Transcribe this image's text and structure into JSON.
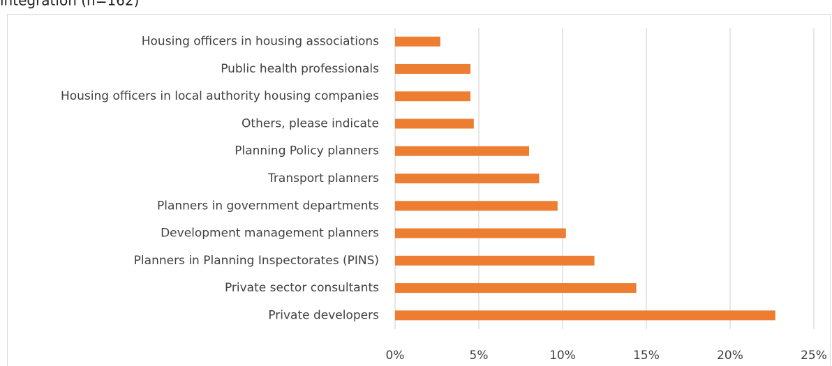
{
  "chart_data": {
    "type": "bar",
    "orientation": "horizontal",
    "title": "integration (n=162)",
    "categories": [
      "Housing officers in housing associations",
      "Public health professionals",
      "Housing officers in local authority housing companies",
      "Others, please indicate",
      "Planning Policy planners",
      "Transport planners",
      "Planners in government departments",
      "Development management planners",
      "Planners in Planning Inspectorates  (PINS)",
      "Private sector consultants",
      "Private developers"
    ],
    "values": [
      2.7,
      4.5,
      4.5,
      4.7,
      8.0,
      8.6,
      9.7,
      10.2,
      11.9,
      14.4,
      22.7
    ],
    "color": "#ed7d31",
    "xlim": [
      0,
      25
    ],
    "xticks": [
      {
        "value": 0,
        "label": "0%"
      },
      {
        "value": 5,
        "label": "5%"
      },
      {
        "value": 10,
        "label": "10%"
      },
      {
        "value": 15,
        "label": "15%"
      },
      {
        "value": 20,
        "label": "20%"
      },
      {
        "value": 25,
        "label": "25%"
      }
    ],
    "grid": true
  }
}
